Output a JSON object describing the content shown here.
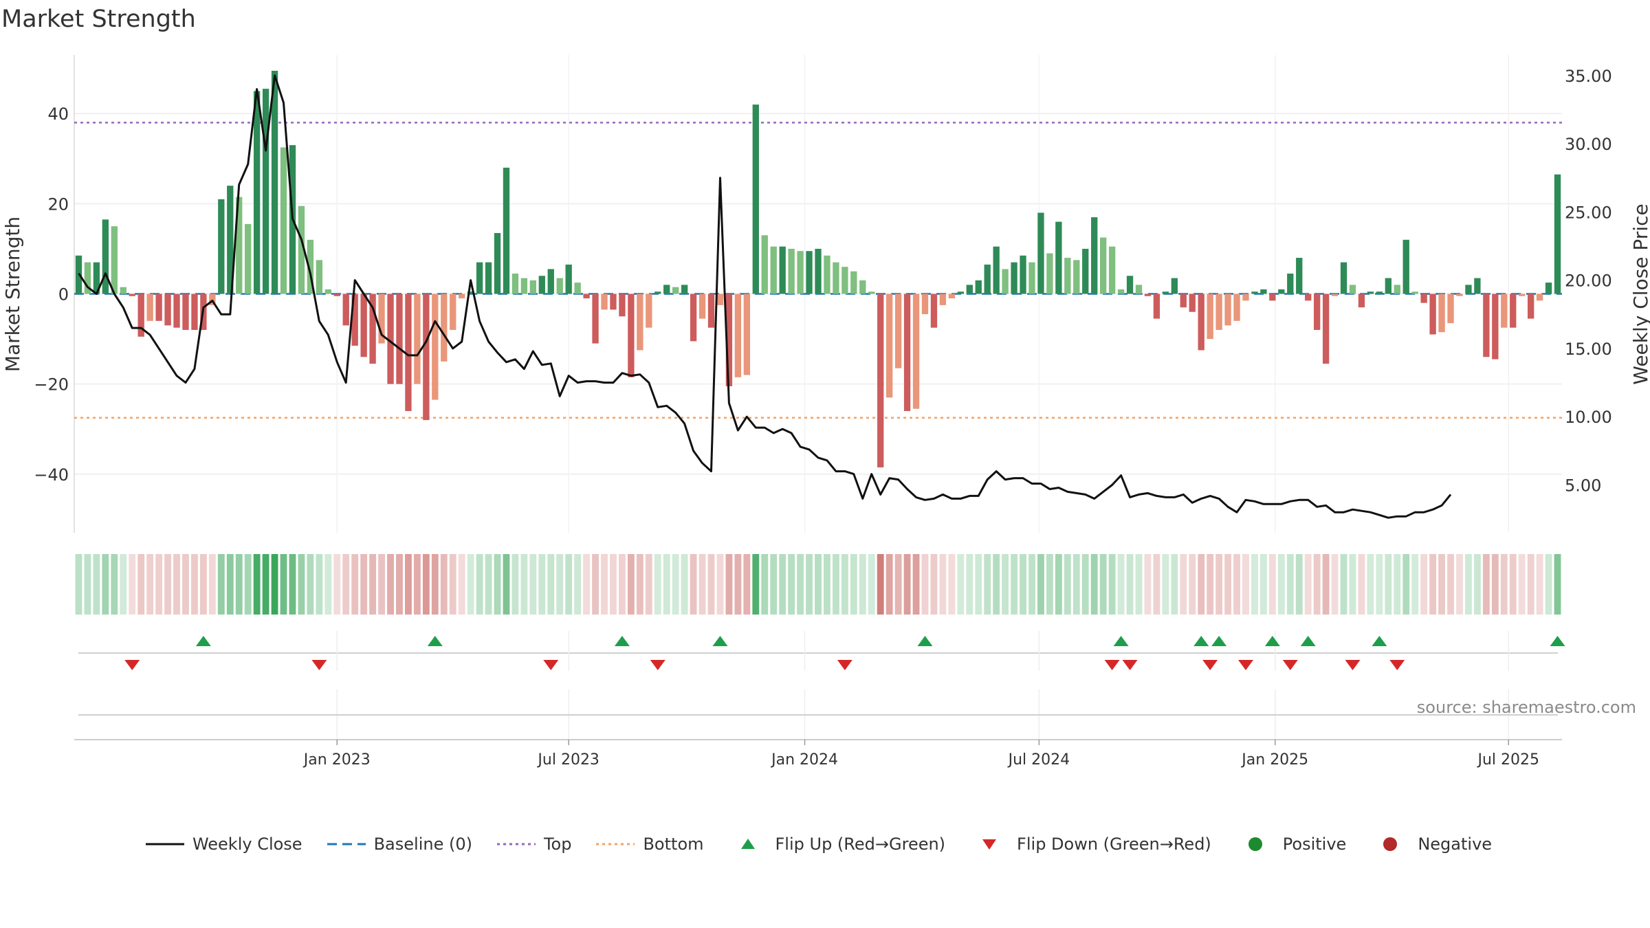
{
  "title": "Market Strength",
  "source": "source: sharemaestro.com",
  "colors": {
    "strong_green": "#2e8b57",
    "light_green": "#7fbf7f",
    "strong_red": "#cd5c5c",
    "light_red": "#e9967a",
    "top_line": "#9467bd",
    "bottom_line": "#f4a261",
    "baseline": "#1f77b4",
    "close_line": "#111111",
    "flip_up": "#1e9e4a",
    "flip_down": "#d62728"
  },
  "legend": [
    {
      "label": "Weekly Close",
      "icon": "solid-line"
    },
    {
      "label": "Baseline (0)",
      "icon": "dashed-line"
    },
    {
      "label": "Top",
      "icon": "dotted-line-purple"
    },
    {
      "label": "Bottom",
      "icon": "dotted-line-orange"
    },
    {
      "label": "Flip Up (Red→Green)",
      "icon": "triangle-up-green"
    },
    {
      "label": "Flip Down (Green→Red)",
      "icon": "triangle-down-red"
    },
    {
      "label": "Positive",
      "icon": "dot-green"
    },
    {
      "label": "Negative",
      "icon": "dot-red"
    }
  ],
  "chart_data": {
    "type": "bar",
    "title": "Market Strength",
    "ylabel": "Market Strength",
    "y2label": "Weekly Close Price",
    "ylim": [
      -53,
      53
    ],
    "y2lim": [
      1.5,
      36.5
    ],
    "yticks": [
      -40,
      -20,
      0,
      20,
      40
    ],
    "y2ticks": [
      "5.00",
      "10.00",
      "15.00",
      "20.00",
      "25.00",
      "30.00",
      "35.00"
    ],
    "xticks": [
      {
        "label": "Jan 2023",
        "week": 29.5
      },
      {
        "label": "Jul 2023",
        "week": 55.5
      },
      {
        "label": "Jan 2024",
        "week": 82.0
      },
      {
        "label": "Jul 2024",
        "week": 108.3
      },
      {
        "label": "Jan 2025",
        "week": 134.8
      },
      {
        "label": "Jul 2025",
        "week": 161.0
      }
    ],
    "top": 38,
    "bottom": -27.5,
    "baseline": 0,
    "strength": [
      8.5,
      7,
      7,
      16.5,
      15,
      1.5,
      -0.5,
      -9.5,
      -6,
      -6,
      -7,
      -7.5,
      -8,
      -8,
      -8,
      -2.5,
      21,
      24,
      21.5,
      15.5,
      45,
      45.5,
      49.5,
      32.5,
      33,
      19.5,
      12,
      7.5,
      1,
      -0.5,
      -7,
      -11.5,
      -14,
      -15.5,
      -11,
      -20,
      -20,
      -26,
      -20,
      -28,
      -23.5,
      -15,
      -8,
      -1,
      0.5,
      7,
      7,
      13.5,
      28,
      4.5,
      3.5,
      3,
      4,
      5.5,
      3.5,
      6.5,
      2.5,
      -1,
      -11,
      -3.5,
      -3.5,
      -5,
      -18.5,
      -12.5,
      -7.5,
      0.5,
      2,
      1.5,
      2,
      -10.5,
      -5.5,
      -7.5,
      -2.5,
      -20.5,
      -18.5,
      -18,
      42,
      13,
      10.5,
      10.5,
      10,
      9.5,
      9.5,
      10,
      8.5,
      7,
      6,
      5,
      3,
      0.5,
      -38.5,
      -23,
      -16.5,
      -26,
      -25.5,
      -4.5,
      -7.5,
      -2.5,
      -1,
      0.5,
      2,
      3,
      6.5,
      10.5,
      5.5,
      7,
      8.5,
      7,
      18,
      9,
      16,
      8,
      7.5,
      10,
      17,
      12.5,
      10.5,
      1,
      4,
      2,
      -0.5,
      -5.5,
      0.5,
      3.5,
      -3,
      -4,
      -12.5,
      -10,
      -8,
      -7,
      -6,
      -1.5,
      0.5,
      1,
      -1.5,
      1,
      4.5,
      8,
      -1.5,
      -8,
      -15.5,
      -0.5,
      7,
      2,
      -3,
      0.5,
      0.5,
      3.5,
      2,
      12,
      0.5,
      -2,
      -9,
      -8.5,
      -6.5,
      -0.5,
      2,
      3.5,
      -14,
      -14.5,
      -7.5,
      -7.5,
      -0.5,
      -5.5,
      -1.5,
      2.5,
      26.5
    ],
    "weekly_close": [
      20.5,
      19.5,
      19,
      20.5,
      19,
      18,
      16.5,
      16.5,
      16,
      15,
      14,
      13,
      12.5,
      13.5,
      18,
      18.5,
      17.5,
      17.5,
      27,
      28.5,
      34,
      29.5,
      35,
      33,
      24.5,
      23,
      20.5,
      17,
      16,
      14,
      12.5,
      20,
      19,
      18,
      16,
      15.5,
      15,
      14.5,
      14.5,
      15.5,
      17,
      16,
      15,
      15.5,
      20,
      17,
      15.5,
      14.7,
      14,
      14.2,
      13.5,
      14.8,
      13.8,
      13.9,
      11.5,
      13,
      12.5,
      12.6,
      12.6,
      12.5,
      12.5,
      13.2,
      13,
      13.1,
      12.5,
      10.7,
      10.8,
      10.3,
      9.5,
      7.5,
      6.6,
      6,
      27.5,
      11,
      9,
      10,
      9.2,
      9.2,
      8.8,
      9.1,
      8.8,
      7.8,
      7.6,
      7,
      6.8,
      6,
      6,
      5.8,
      4,
      5.8,
      4.3,
      5.5,
      5.4,
      4.7,
      4.1,
      3.9,
      4,
      4.3,
      4,
      4,
      4.2,
      4.2,
      5.4,
      6,
      5.4,
      5.5,
      5.5,
      5.1,
      5.1,
      4.7,
      4.8,
      4.5,
      4.4,
      4.3,
      4.0,
      4.5,
      5,
      5.7,
      4.1,
      4.3,
      4.4,
      4.2,
      4.1,
      4.1,
      4.3,
      3.7,
      4.0,
      4.2,
      4.0,
      3.4,
      3.0,
      3.9,
      3.8,
      3.6,
      3.6,
      3.6,
      3.8,
      3.9,
      3.9,
      3.4,
      3.5,
      3.0,
      3.0,
      3.2,
      3.1,
      3.0,
      2.8,
      2.6,
      2.7,
      2.7,
      3.0,
      3.0,
      3.2,
      3.5,
      4.3
    ],
    "flip_up_weeks": [
      14,
      40,
      61,
      72,
      95,
      117,
      126,
      128,
      134,
      138,
      146,
      166
    ],
    "flip_down_weeks": [
      6,
      27,
      53,
      65,
      86,
      116,
      118,
      127,
      131,
      136,
      143,
      148
    ]
  }
}
